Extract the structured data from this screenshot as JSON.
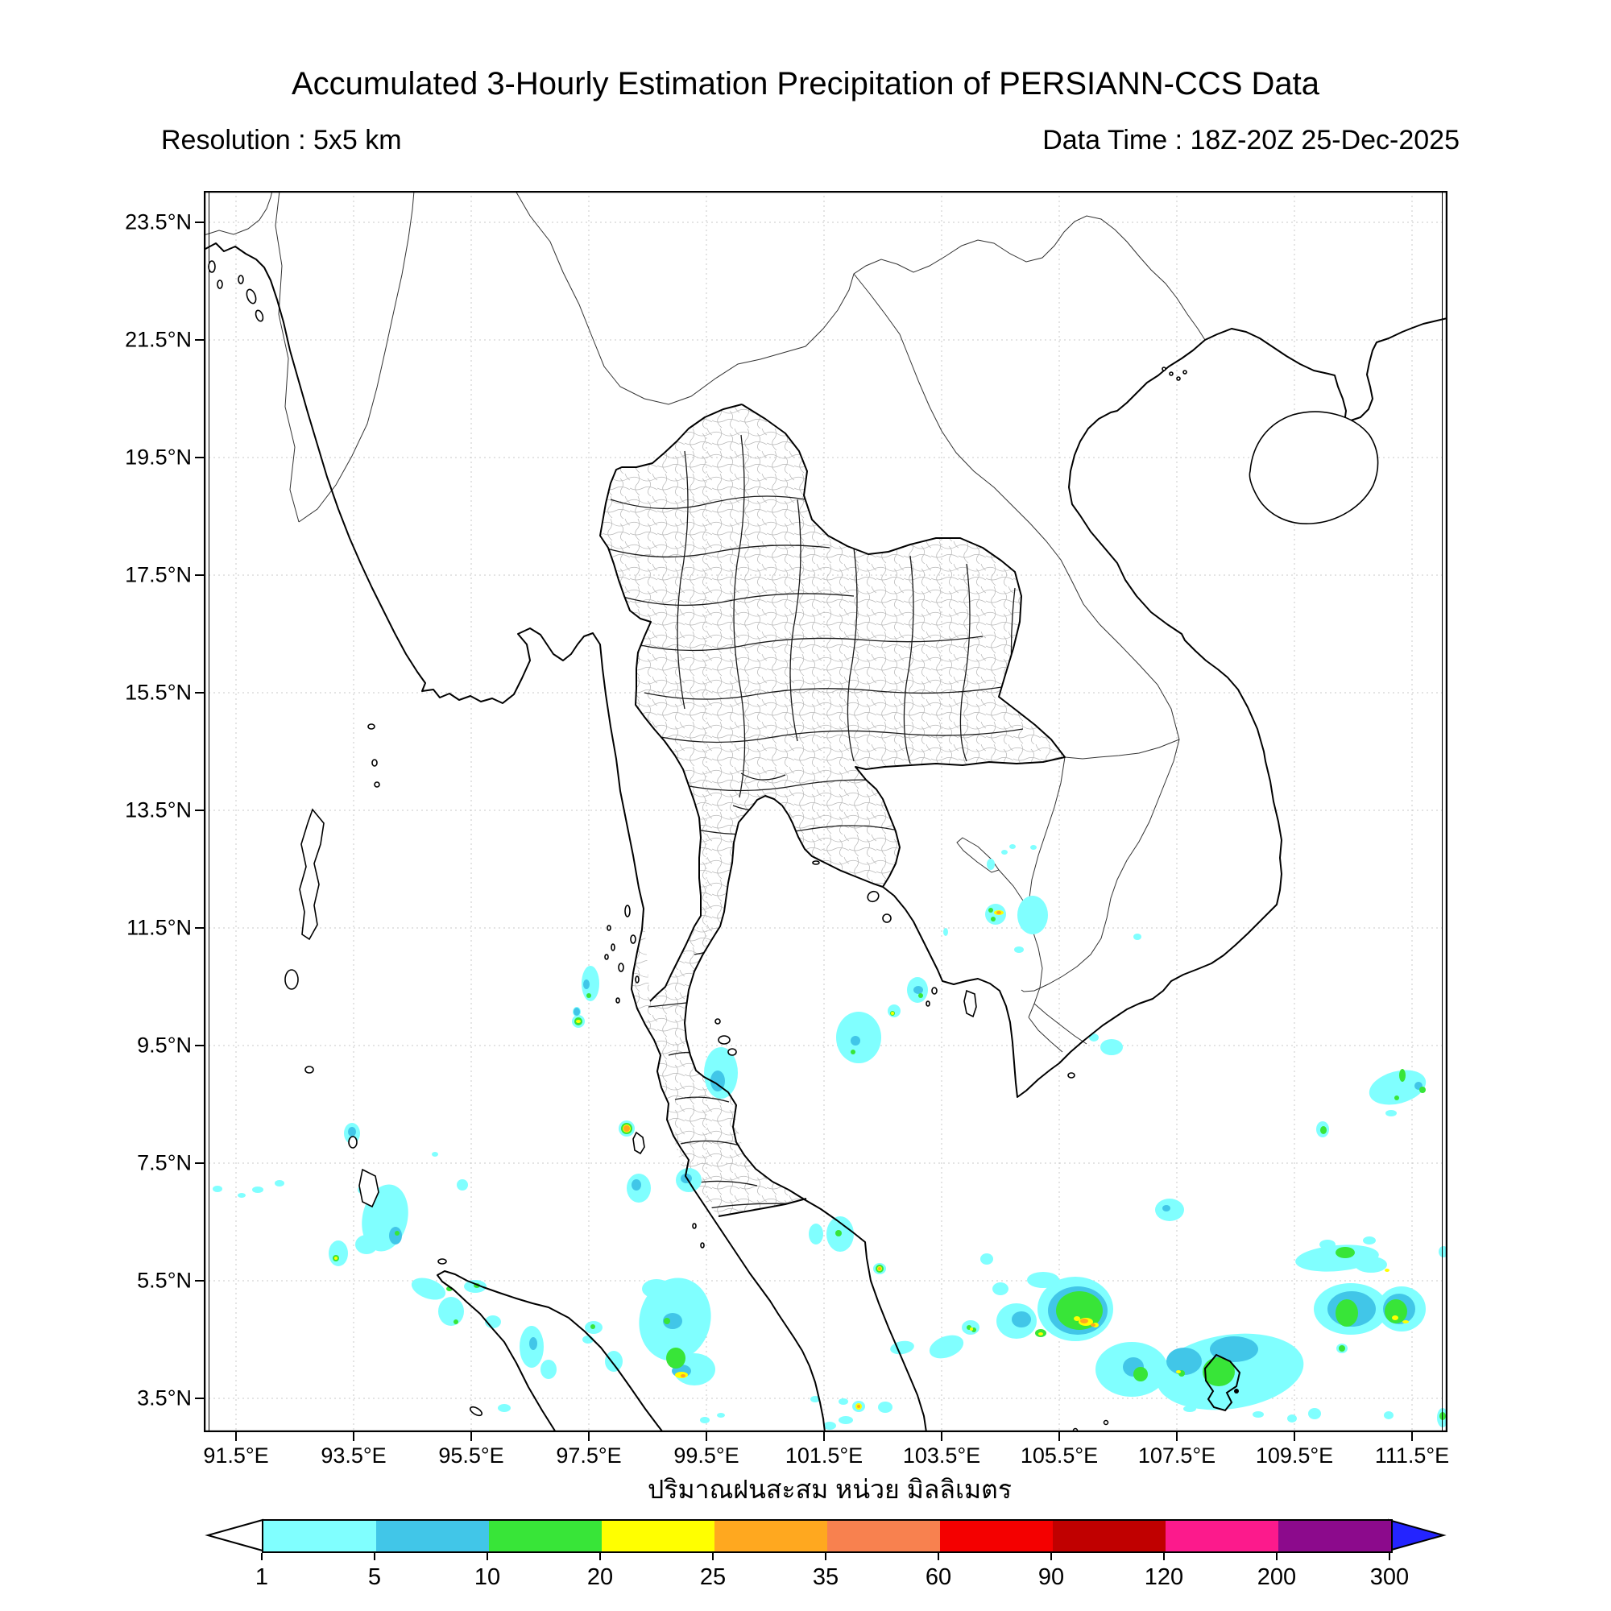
{
  "header": {
    "title": "Accumulated 3-Hourly Estimation Precipitation of PERSIANN-CCS Data",
    "resolution_label": "Resolution : 5x5 km",
    "datatime_label": "Data Time : 18Z-20Z 25-Dec-2025"
  },
  "map": {
    "lat_tick_labels": [
      "23.5°N",
      "21.5°N",
      "19.5°N",
      "17.5°N",
      "15.5°N",
      "13.5°N",
      "11.5°N",
      "9.5°N",
      "7.5°N",
      "5.5°N",
      "3.5°N"
    ],
    "lon_tick_labels": [
      "91.5°E",
      "93.5°E",
      "95.5°E",
      "97.5°E",
      "99.5°E",
      "101.5°E",
      "103.5°E",
      "105.5°E",
      "107.5°E",
      "109.5°E",
      "111.5°E"
    ]
  },
  "caption": {
    "thai_units_label": "ปริมาณฝนสะสม หน่วย มิลลิเมตร"
  },
  "colorbar": {
    "tick_labels": [
      "1",
      "5",
      "10",
      "20",
      "25",
      "35",
      "60",
      "90",
      "120",
      "200",
      "300"
    ],
    "segment_colors": [
      "#80ffff",
      "#41c6e8",
      "#38e538",
      "#ffff00",
      "#ffa81f",
      "#f8814f",
      "#f40000",
      "#c00000",
      "#fc1a8c",
      "#8c0a8c"
    ],
    "under_range_color": "#ffffff",
    "over_range_color": "#2424ff",
    "precip_level_colors": {
      "1-5": "#80ffff",
      "5-10": "#41c6e8",
      "10-20": "#38e538",
      "20-25": "#ffff00",
      "25-35": "#ffa81f",
      "35-60": "#f8814f",
      "60-90": "#f40000",
      "90-120": "#c00000",
      "120-200": "#fc1a8c",
      "200-300": "#8c0a8c"
    }
  }
}
